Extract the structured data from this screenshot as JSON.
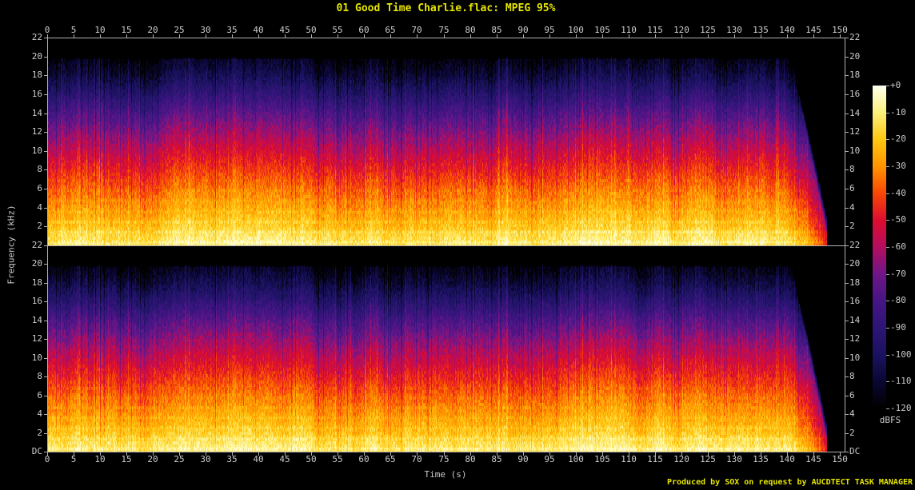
{
  "header": {
    "title": "01 Good Time Charlie.flac: MPEG 95%",
    "title_color": "#e6e600"
  },
  "footer": {
    "credit": "Produced by SOX on request by AUCDTECT TASK MANAGER",
    "credit_color": "#e6e600"
  },
  "chart_data": {
    "type": "heatmap",
    "subtype": "stereo_spectrogram",
    "title": "01 Good Time Charlie.flac: MPEG 95%",
    "xlabel": "Time (s)",
    "ylabel": "Frequency (kHz)",
    "colorbar_label": "dBFS",
    "channels": 2,
    "x_range_s": [
      0,
      150
    ],
    "x_ticks": [
      0,
      5,
      10,
      15,
      20,
      25,
      30,
      35,
      40,
      45,
      50,
      55,
      60,
      65,
      70,
      75,
      80,
      85,
      90,
      95,
      100,
      105,
      110,
      115,
      120,
      125,
      130,
      135,
      140,
      145,
      150
    ],
    "y_range_khz": [
      0,
      22
    ],
    "freq_ticks_channel1": [
      "22",
      "20",
      "18",
      "16",
      "14",
      "12",
      "10",
      "8",
      "6",
      "4",
      "2"
    ],
    "freq_ticks_channel2": [
      "22",
      "20",
      "18",
      "16",
      "14",
      "12",
      "10",
      "8",
      "6",
      "4",
      "2",
      "DC"
    ],
    "db_range": [
      -120,
      0
    ],
    "colorbar_ticks": [
      "+0",
      "-10",
      "-20",
      "-30",
      "-40",
      "-50",
      "-60",
      "-70",
      "-80",
      "-90",
      "-100",
      "-110",
      "-120"
    ],
    "audio_end_s": 147.5,
    "fade_out_start_s": 140,
    "lowpass_cutoff_khz": 19.8,
    "freq_db_profile": [
      [
        0,
        -11
      ],
      [
        0.8,
        -13
      ],
      [
        1.5,
        -17
      ],
      [
        2,
        -20
      ],
      [
        3,
        -24
      ],
      [
        4,
        -28
      ],
      [
        5,
        -32
      ],
      [
        6,
        -36
      ],
      [
        8,
        -45
      ],
      [
        10,
        -55
      ],
      [
        12,
        -66
      ],
      [
        14,
        -78
      ],
      [
        16,
        -92
      ],
      [
        17,
        -99
      ],
      [
        18,
        -106
      ],
      [
        19,
        -112
      ],
      [
        20,
        -117
      ],
      [
        22,
        -120
      ]
    ],
    "palette": [
      [
        0,
        "#000000"
      ],
      [
        0.0833,
        "#0b0733"
      ],
      [
        0.1667,
        "#1a1260"
      ],
      [
        0.25,
        "#2d1575"
      ],
      [
        0.3333,
        "#471585"
      ],
      [
        0.4167,
        "#6f1687"
      ],
      [
        0.5,
        "#b50d5e"
      ],
      [
        0.5833,
        "#dd0d2e"
      ],
      [
        0.6667,
        "#f84805"
      ],
      [
        0.75,
        "#ff9400"
      ],
      [
        0.8333,
        "#ffc810"
      ],
      [
        0.9167,
        "#fdf07e"
      ],
      [
        1,
        "#fffff0"
      ]
    ]
  }
}
